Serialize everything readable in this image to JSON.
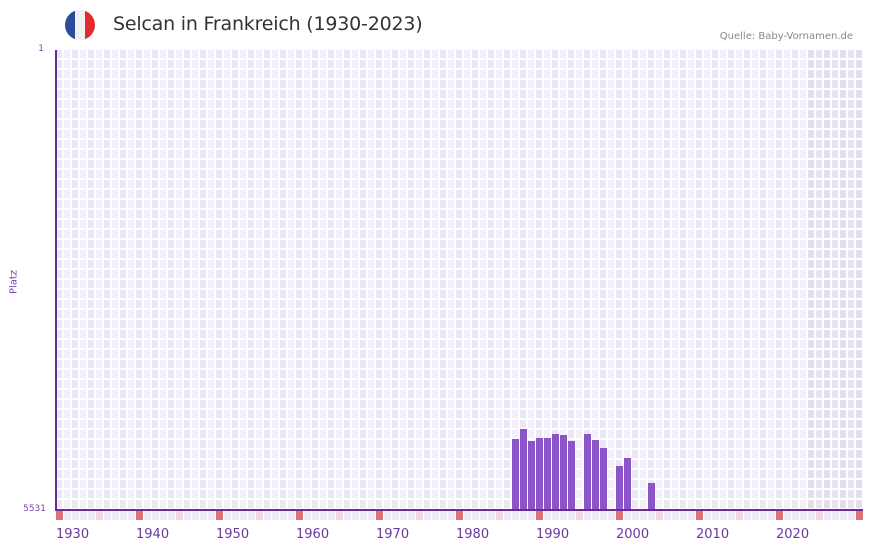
{
  "header": {
    "title": "Selcan in Frankreich (1930-2023)",
    "source": "Quelle: Baby-Vornamen.de",
    "flag": {
      "name": "france-flag",
      "colors": [
        "#2b4c9b",
        "#f1f1f1",
        "#e32b2f"
      ]
    }
  },
  "colors": {
    "bar": "#8c54c8",
    "axis": "#6a2c91",
    "cell_a": "#ece7f7",
    "cell_b": "#f3f0fb",
    "cell_future_a": "#e2dcec",
    "cell_future_b": "#e8e3f0",
    "marker_decade": "#e07078",
    "marker_half": "#f3d8e2",
    "marker_other": "#efeaf8"
  },
  "chart_data": {
    "type": "bar",
    "title": "Selcan in Frankreich (1930-2023)",
    "xlabel": "",
    "ylabel": "Platz",
    "ylim": [
      5531,
      1
    ],
    "y_inverted": true,
    "xlim": [
      1930,
      2030
    ],
    "grid": true,
    "yticks": [
      "1",
      "5531"
    ],
    "xticks": [
      "1930",
      "1940",
      "1950",
      "1960",
      "1970",
      "1980",
      "1990",
      "2000",
      "2010",
      "2020"
    ],
    "shaded_future_from": 2024,
    "x": [
      1987,
      1988,
      1989,
      1990,
      1991,
      1992,
      1993,
      1994,
      1996,
      1997,
      1998,
      2000,
      2001,
      2004
    ],
    "values": [
      4677,
      4557,
      4701,
      4665,
      4665,
      4617,
      4629,
      4701,
      4617,
      4689,
      4785,
      5002,
      4906,
      5207
    ]
  }
}
